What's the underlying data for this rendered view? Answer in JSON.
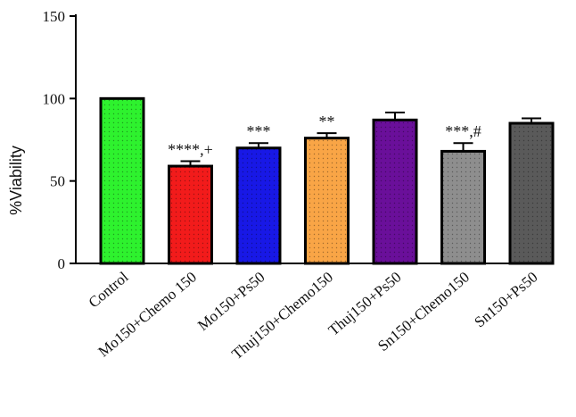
{
  "chart_data": {
    "type": "bar",
    "ylabel": "%Viability",
    "xlabel": "",
    "ylim": [
      0,
      150
    ],
    "yticks": [
      0,
      50,
      100,
      150
    ],
    "grid": false,
    "categories": [
      "Control",
      "Mo150+Chemo 150",
      "Mo150+Ps50",
      "Thuj150+Chemo150",
      "Thuj150+Ps50",
      "Sn150+Chemo150",
      "Sn150+Ps50"
    ],
    "values": [
      100,
      59,
      70,
      76,
      87,
      68,
      85
    ],
    "errors": [
      0,
      3,
      3,
      3,
      4.5,
      5,
      3
    ],
    "annotations": [
      "",
      "****,+",
      "***",
      "**",
      "",
      "***,#",
      ""
    ],
    "colors": [
      "#2ef22e",
      "#f21b1b",
      "#1818e6",
      "#f9a546",
      "#6a0f9a",
      "#8e8e8e",
      "#5a5a5a"
    ],
    "pattern": "dotted"
  }
}
